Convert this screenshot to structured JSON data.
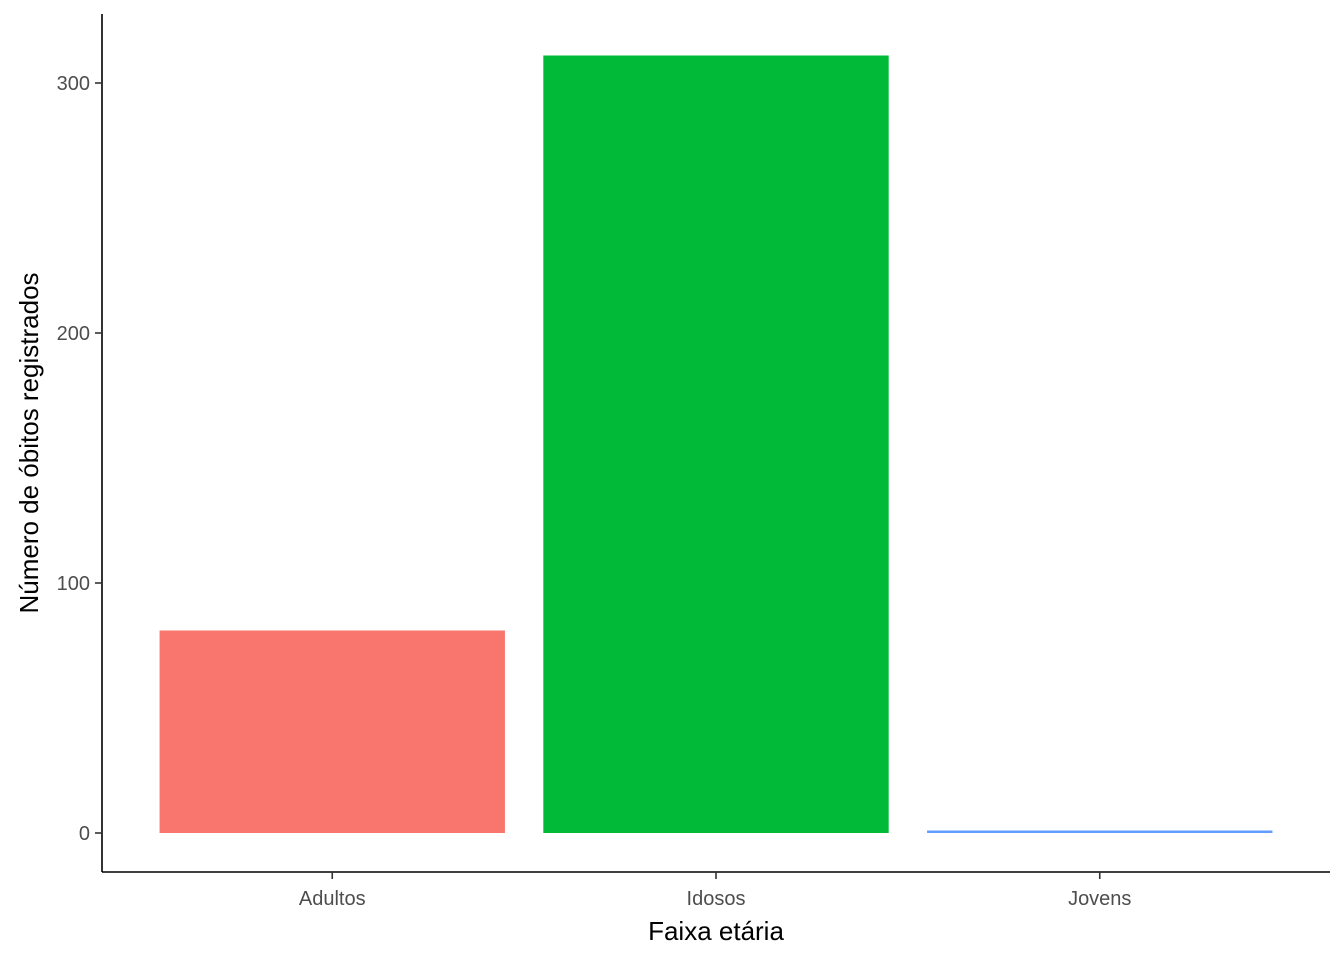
{
  "chart_data": {
    "type": "bar",
    "categories": [
      "Adultos",
      "Idosos",
      "Jovens"
    ],
    "values": [
      81,
      311,
      1
    ],
    "colors": [
      "#F8766D",
      "#00BA38",
      "#619CFF"
    ],
    "xlabel": "Faixa etária",
    "ylabel": "Número de óbitos registrados",
    "yticks": [
      0,
      100,
      200,
      300
    ],
    "ylim": [
      -15.6,
      327.6
    ],
    "grid": false,
    "legend": "none"
  }
}
